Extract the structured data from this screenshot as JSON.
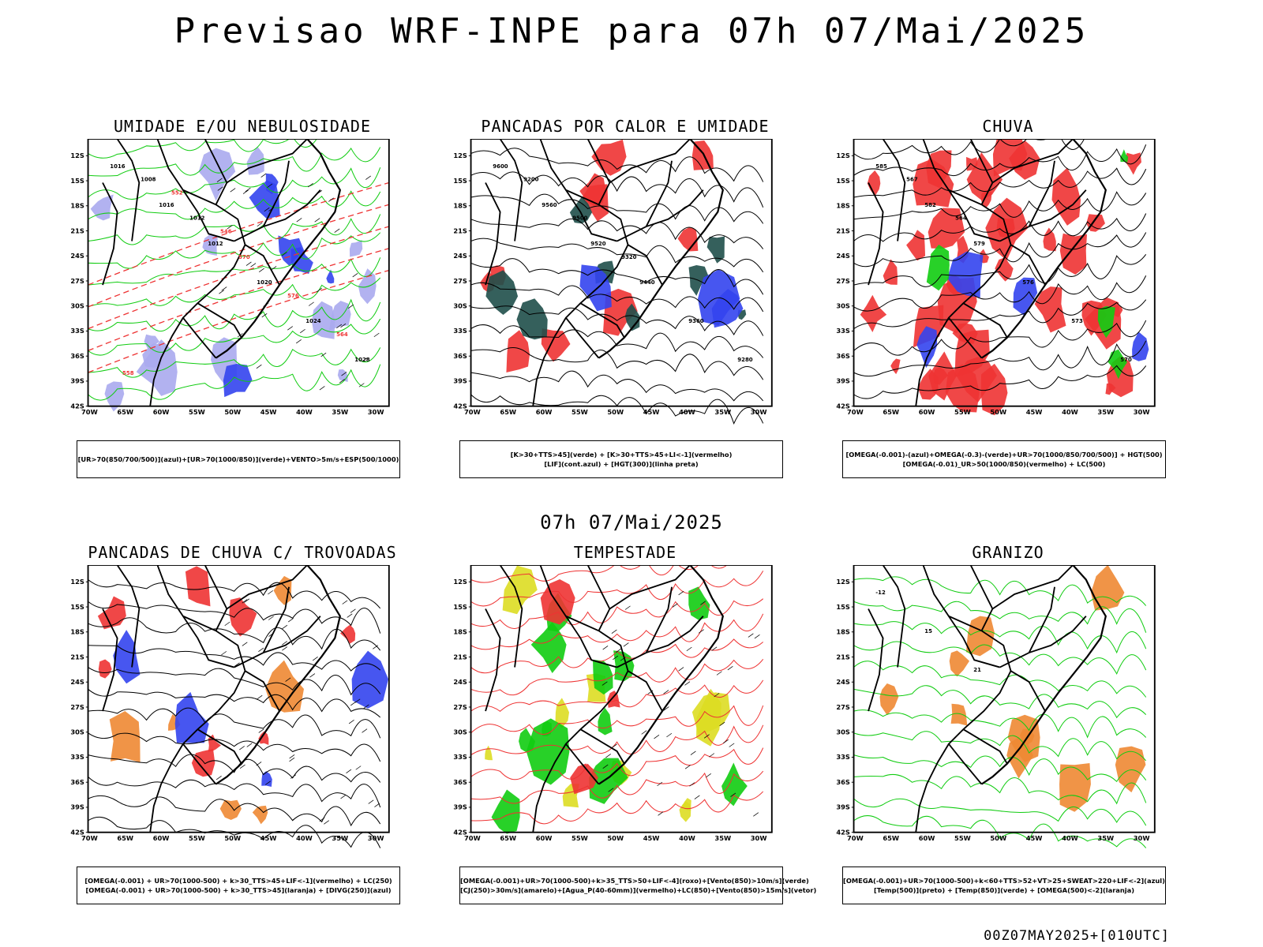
{
  "title": "Previsao WRF-INPE  para 07h 07/Mai/2025",
  "subtitle": "07h 07/Mai/2025",
  "footer": "00Z07MAY2025+[010UTC]",
  "axes": {
    "lat_labels": [
      "12S",
      "15S",
      "18S",
      "21S",
      "24S",
      "27S",
      "30S",
      "33S",
      "36S",
      "39S",
      "42S"
    ],
    "lon_labels": [
      "70W",
      "65W",
      "60W",
      "55W",
      "50W",
      "45W",
      "40W",
      "35W",
      "30W"
    ]
  },
  "colors": {
    "blue": "#3344ee",
    "lavender": "#aaaaee",
    "green": "#11cc11",
    "red": "#ee3333",
    "dark_teal": "#1f4f4a",
    "yellow": "#dddd22",
    "orange": "#ee8833",
    "black": "#000000"
  },
  "panels": [
    {
      "title": "UMIDADE E/OU NEBULOSIDADE",
      "legend": [
        "[UR>70(850/700/500)](azul)+[UR>70(1000/850)](verde)+VENTO>5m/s+ESP(500/1000)"
      ],
      "contour_labels": [
        "1016",
        "1016",
        "1012",
        "1020",
        "1024",
        "1028",
        "1008",
        "1012",
        "570",
        "576",
        "564",
        "558",
        "552",
        "546"
      ]
    },
    {
      "title": "PANCADAS POR CALOR E UMIDADE",
      "legend": [
        "[K>30+TTS>45](verde) + [K>30+TTS>45+LI<-1](vermelho)",
        "[LIF](cont.azul) + [HGT(300)](linha preta)"
      ],
      "contour_labels": [
        "9600",
        "9560",
        "9520",
        "9440",
        "9360",
        "9280",
        "9200",
        "9500",
        "9320"
      ]
    },
    {
      "title": "CHUVA",
      "legend": [
        "[OMEGA(-0.001)-(azul)+OMEGA(-0.3)-(verde)+UR>70(1000/850/700/500)] + HGT(500)",
        "[OMEGA(-0.01)_UR>50(1000/850)(vermelho) + LC(500)"
      ],
      "contour_labels": [
        "585",
        "582",
        "579",
        "576",
        "573",
        "570",
        "567",
        "564"
      ]
    },
    {
      "title": "PANCADAS DE CHUVA C/ TROVOADAS",
      "legend": [
        "[OMEGA(-0.001) + UR>70(1000-500) + k>30_TTS>45+LIF<-1](vermelho) + LC(250)",
        "[OMEGA(-0.001) + UR>70(1000-500) + k>30_TTS>45](laranja) + [DIVG(250)](azul)"
      ],
      "contour_labels": []
    },
    {
      "title": "TEMPESTADE",
      "legend": [
        "[OMEGA(-0.001)+UR>70(1000-500)+k>35_TTS>50+LIF<-4](roxo)+[Vento(850)>10m/s](verde)",
        "[CJ(250)>30m/s](amarelo)+[Agua_P(40-60mm)](vermelho)+LC(850)+[Vento(850)>15m/s](vetor)"
      ],
      "contour_labels": []
    },
    {
      "title": "GRANIZO",
      "legend": [
        "[OMEGA(-0.001)+UR>70(1000-500)+k<60+TTS>52+VT>25+SWEAT>220+LIF<-2](azul)",
        "[Temp(500)](preto) + [Temp(850)](verde) + [OMEGA(500)<-2](laranja)"
      ],
      "contour_labels": [
        "-12",
        "15",
        "21"
      ]
    }
  ]
}
